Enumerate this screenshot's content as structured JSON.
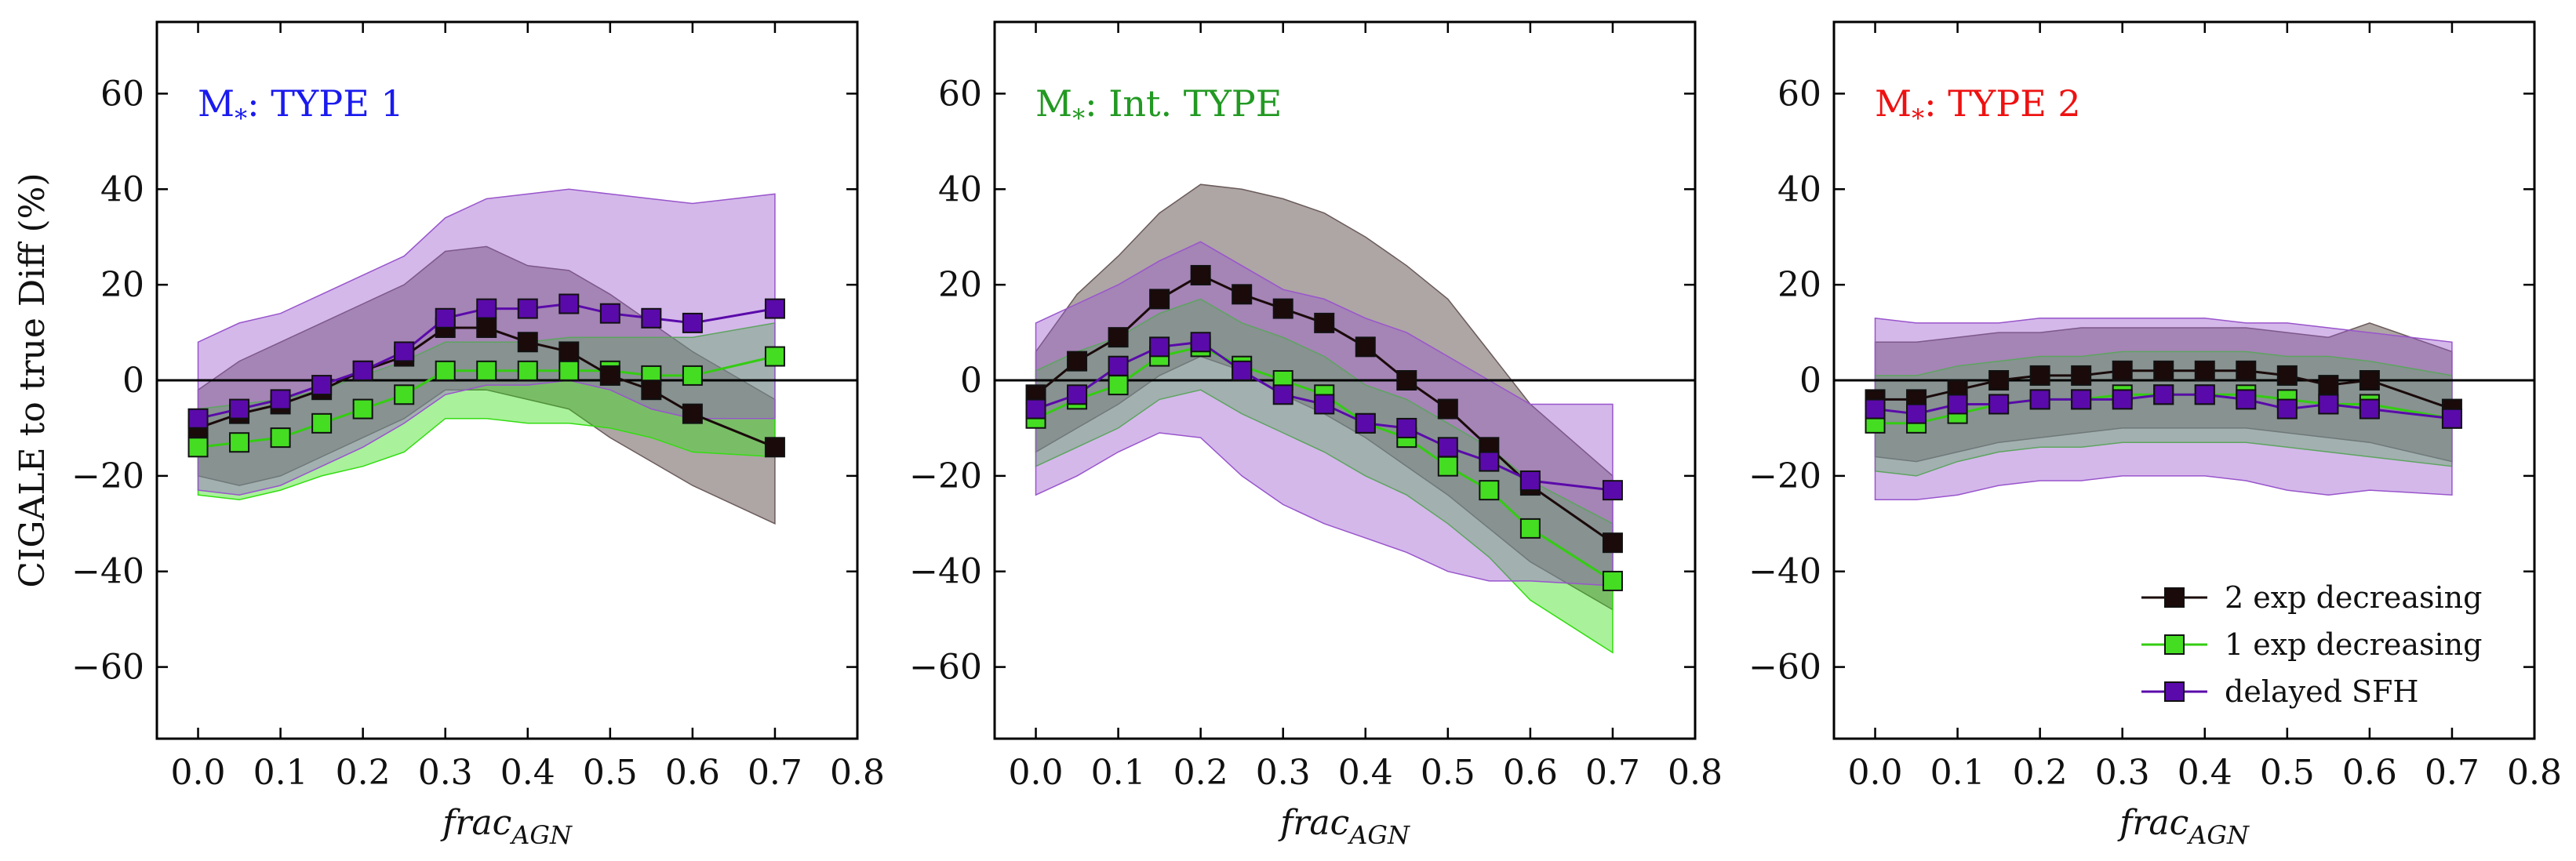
{
  "chart_data": [
    {
      "type": "line",
      "title": "M",
      "title_sub": "*",
      "title_suffix": ": TYPE 1",
      "title_color": "#1a1aee",
      "xlabel": "frac",
      "xlabel_sub": "AGN",
      "ylabel": "CIGALE to true Diff (%)",
      "xlim": [
        -0.05,
        0.8
      ],
      "ylim": [
        -75,
        75
      ],
      "xticks": [
        "0.0",
        "0.1",
        "0.2",
        "0.3",
        "0.4",
        "0.5",
        "0.6",
        "0.7",
        "0.8"
      ],
      "yticks": [
        "60",
        "40",
        "20",
        "0",
        "−20",
        "−40",
        "−60"
      ],
      "x": [
        0.0,
        0.05,
        0.1,
        0.15,
        0.2,
        0.25,
        0.3,
        0.35,
        0.4,
        0.45,
        0.5,
        0.55,
        0.6,
        0.7
      ],
      "series": [
        {
          "name": "2 exp decreasing",
          "color": "#1a0a0a",
          "fill": "#6b5b5b",
          "values": [
            -10,
            -7,
            -5,
            -2,
            2,
            5,
            11,
            11,
            8,
            6,
            1,
            -2,
            -7,
            -14
          ],
          "upper": [
            -2,
            4,
            8,
            12,
            16,
            20,
            27,
            28,
            24,
            23,
            18,
            12,
            6,
            -4
          ],
          "lower": [
            -20,
            -22,
            -20,
            -16,
            -12,
            -8,
            -2,
            -2,
            -4,
            -6,
            -12,
            -17,
            -22,
            -30
          ]
        },
        {
          "name": "1 exp decreasing",
          "color": "#33cc11",
          "fill": "#33dd11",
          "values": [
            -14,
            -13,
            -12,
            -9,
            -6,
            -3,
            2,
            2,
            2,
            2,
            2,
            1,
            1,
            5
          ],
          "upper": [
            -6,
            -5,
            -4,
            -2,
            1,
            4,
            8,
            8,
            8,
            9,
            9,
            9,
            9,
            12
          ],
          "lower": [
            -24,
            -25,
            -23,
            -20,
            -18,
            -15,
            -8,
            -8,
            -9,
            -9,
            -10,
            -12,
            -15,
            -16
          ]
        },
        {
          "name": "delayed SFH",
          "color": "#5a0aaa",
          "fill": "#9955cc",
          "values": [
            -8,
            -6,
            -4,
            -1,
            2,
            6,
            13,
            15,
            15,
            16,
            14,
            13,
            12,
            15
          ],
          "upper": [
            8,
            12,
            14,
            18,
            22,
            26,
            34,
            38,
            39,
            40,
            39,
            38,
            37,
            39
          ],
          "lower": [
            -23,
            -24,
            -22,
            -18,
            -14,
            -9,
            -3,
            -1,
            -1,
            0,
            -2,
            -6,
            -8,
            -8
          ]
        }
      ]
    },
    {
      "type": "line",
      "title": "M",
      "title_sub": "*",
      "title_suffix": ": Int. TYPE",
      "title_color": "#229922",
      "xlabel": "frac",
      "xlabel_sub": "AGN",
      "ylabel": "",
      "xlim": [
        -0.05,
        0.8
      ],
      "ylim": [
        -75,
        75
      ],
      "xticks": [
        "0.0",
        "0.1",
        "0.2",
        "0.3",
        "0.4",
        "0.5",
        "0.6",
        "0.7",
        "0.8"
      ],
      "yticks": [
        "60",
        "40",
        "20",
        "0",
        "−20",
        "−40",
        "−60"
      ],
      "x": [
        0.0,
        0.05,
        0.1,
        0.15,
        0.2,
        0.25,
        0.3,
        0.35,
        0.4,
        0.45,
        0.5,
        0.55,
        0.6,
        0.7
      ],
      "series": [
        {
          "name": "2 exp decreasing",
          "color": "#1a0a0a",
          "fill": "#6b5b5b",
          "values": [
            -3,
            4,
            9,
            17,
            22,
            18,
            15,
            12,
            7,
            0,
            -6,
            -14,
            -22,
            -34
          ],
          "upper": [
            6,
            18,
            26,
            35,
            41,
            40,
            38,
            35,
            30,
            24,
            17,
            6,
            -5,
            -20
          ],
          "lower": [
            -15,
            -10,
            -5,
            1,
            5,
            2,
            -3,
            -7,
            -12,
            -18,
            -24,
            -31,
            -38,
            -48
          ]
        },
        {
          "name": "1 exp decreasing",
          "color": "#33cc11",
          "fill": "#33dd11",
          "values": [
            -8,
            -4,
            -1,
            5,
            7,
            3,
            0,
            -3,
            -9,
            -12,
            -18,
            -23,
            -31,
            -42
          ],
          "upper": [
            2,
            6,
            9,
            14,
            17,
            12,
            9,
            5,
            -1,
            -4,
            -9,
            -14,
            -21,
            -30
          ],
          "lower": [
            -18,
            -14,
            -10,
            -4,
            -2,
            -7,
            -11,
            -15,
            -20,
            -24,
            -30,
            -37,
            -46,
            -57
          ]
        },
        {
          "name": "delayed SFH",
          "color": "#5a0aaa",
          "fill": "#9955cc",
          "values": [
            -6,
            -3,
            3,
            7,
            8,
            2,
            -3,
            -5,
            -9,
            -10,
            -14,
            -17,
            -21,
            -23
          ],
          "upper": [
            12,
            16,
            20,
            25,
            29,
            24,
            19,
            17,
            13,
            10,
            5,
            0,
            -5,
            -5
          ],
          "lower": [
            -24,
            -20,
            -15,
            -11,
            -12,
            -20,
            -26,
            -30,
            -33,
            -36,
            -40,
            -42,
            -42,
            -43
          ]
        }
      ]
    },
    {
      "type": "line",
      "title": "M",
      "title_sub": "*",
      "title_suffix": ": TYPE 2",
      "title_color": "#ee1111",
      "xlabel": "frac",
      "xlabel_sub": "AGN",
      "ylabel": "",
      "xlim": [
        -0.05,
        0.8
      ],
      "ylim": [
        -75,
        75
      ],
      "xticks": [
        "0.0",
        "0.1",
        "0.2",
        "0.3",
        "0.4",
        "0.5",
        "0.6",
        "0.7",
        "0.8"
      ],
      "yticks": [
        "60",
        "40",
        "20",
        "0",
        "−20",
        "−40",
        "−60"
      ],
      "x": [
        0.0,
        0.05,
        0.1,
        0.15,
        0.2,
        0.25,
        0.3,
        0.35,
        0.4,
        0.45,
        0.5,
        0.55,
        0.6,
        0.7
      ],
      "series": [
        {
          "name": "2 exp decreasing",
          "color": "#1a0a0a",
          "fill": "#6b5b5b",
          "values": [
            -4,
            -4,
            -2,
            0,
            1,
            1,
            2,
            2,
            2,
            2,
            1,
            -1,
            0,
            -6
          ],
          "upper": [
            8,
            8,
            9,
            10,
            10,
            11,
            11,
            11,
            11,
            11,
            10,
            9,
            12,
            6
          ],
          "lower": [
            -16,
            -17,
            -15,
            -13,
            -12,
            -11,
            -10,
            -10,
            -10,
            -10,
            -11,
            -12,
            -13,
            -17
          ]
        },
        {
          "name": "1 exp decreasing",
          "color": "#33cc11",
          "fill": "#33dd11",
          "values": [
            -9,
            -9,
            -7,
            -5,
            -4,
            -4,
            -3,
            -3,
            -3,
            -3,
            -4,
            -5,
            -5,
            -8
          ],
          "upper": [
            1,
            1,
            3,
            4,
            5,
            5,
            6,
            6,
            6,
            6,
            5,
            5,
            4,
            1
          ],
          "lower": [
            -19,
            -20,
            -17,
            -15,
            -14,
            -14,
            -13,
            -13,
            -13,
            -13,
            -14,
            -15,
            -16,
            -18
          ]
        },
        {
          "name": "delayed SFH",
          "color": "#5a0aaa",
          "fill": "#9955cc",
          "values": [
            -6,
            -7,
            -5,
            -5,
            -4,
            -4,
            -4,
            -3,
            -3,
            -4,
            -6,
            -5,
            -6,
            -8
          ],
          "upper": [
            13,
            12,
            12,
            12,
            13,
            13,
            13,
            13,
            13,
            12,
            12,
            11,
            10,
            8
          ],
          "lower": [
            -25,
            -25,
            -24,
            -22,
            -21,
            -21,
            -20,
            -20,
            -20,
            -21,
            -23,
            -24,
            -23,
            -24
          ]
        }
      ],
      "legend": {
        "position": "lower-right",
        "entries": [
          "2 exp decreasing",
          "1 exp decreasing",
          "delayed SFH"
        ]
      }
    }
  ]
}
